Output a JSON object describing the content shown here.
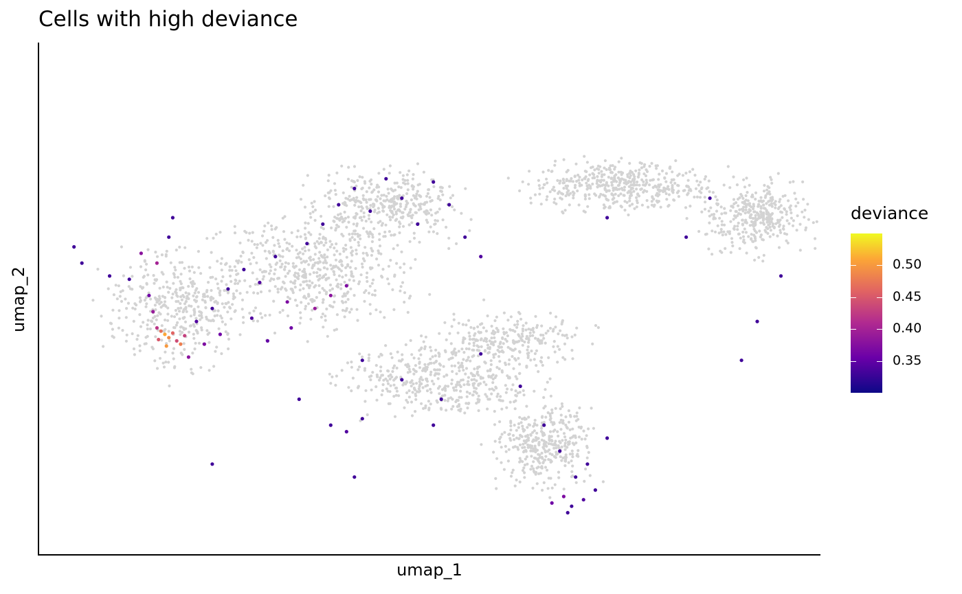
{
  "chart_data": {
    "type": "scatter",
    "title": "Cells with high deviance",
    "xlabel": "umap_1",
    "ylabel": "umap_2",
    "grid": false,
    "legend": {
      "title": "deviance",
      "position": "right",
      "colormap": "plasma",
      "range": [
        0.3,
        0.55
      ],
      "ticks": [
        0.35,
        0.4,
        0.45,
        0.5
      ],
      "tick_labels": [
        "0.35",
        "0.40",
        "0.45",
        "0.50"
      ]
    },
    "background_color": "#d3d3d3",
    "series": [
      {
        "group": "high_deviance_cells",
        "points": [
          [
            -2.15,
            1.55,
            0.33
          ],
          [
            -2.05,
            1.3,
            0.33
          ],
          [
            -1.7,
            1.1,
            0.33
          ],
          [
            -1.45,
            1.05,
            0.33
          ],
          [
            -1.3,
            1.45,
            0.38
          ],
          [
            -1.1,
            1.3,
            0.4
          ],
          [
            -0.95,
            1.7,
            0.33
          ],
          [
            -0.9,
            2.0,
            0.33
          ],
          [
            -1.2,
            0.8,
            0.36
          ],
          [
            -1.15,
            0.55,
            0.39
          ],
          [
            -1.1,
            0.3,
            0.42
          ],
          [
            -1.05,
            0.25,
            0.47
          ],
          [
            -1.0,
            0.2,
            0.51
          ],
          [
            -0.95,
            0.15,
            0.49
          ],
          [
            -0.9,
            0.22,
            0.46
          ],
          [
            -0.85,
            0.1,
            0.44
          ],
          [
            -0.8,
            0.05,
            0.48
          ],
          [
            -0.75,
            0.18,
            0.43
          ],
          [
            -1.08,
            0.12,
            0.45
          ],
          [
            -0.98,
            0.02,
            0.5
          ],
          [
            -0.7,
            -0.15,
            0.38
          ],
          [
            -0.6,
            0.4,
            0.34
          ],
          [
            -0.4,
            0.6,
            0.33
          ],
          [
            -0.2,
            0.9,
            0.33
          ],
          [
            0.0,
            1.2,
            0.33
          ],
          [
            0.2,
            1.0,
            0.34
          ],
          [
            0.4,
            1.4,
            0.33
          ],
          [
            0.55,
            0.7,
            0.37
          ],
          [
            0.8,
            1.6,
            0.33
          ],
          [
            1.0,
            1.9,
            0.33
          ],
          [
            1.2,
            2.2,
            0.33
          ],
          [
            1.4,
            2.45,
            0.33
          ],
          [
            1.6,
            2.1,
            0.33
          ],
          [
            1.8,
            2.6,
            0.33
          ],
          [
            2.0,
            2.3,
            0.33
          ],
          [
            2.2,
            1.9,
            0.33
          ],
          [
            2.4,
            2.55,
            0.33
          ],
          [
            2.6,
            2.2,
            0.33
          ],
          [
            2.8,
            1.7,
            0.33
          ],
          [
            3.0,
            1.4,
            0.34
          ],
          [
            1.1,
            0.8,
            0.38
          ],
          [
            1.3,
            0.95,
            0.37
          ],
          [
            0.9,
            0.6,
            0.39
          ],
          [
            0.6,
            0.3,
            0.36
          ],
          [
            0.3,
            0.1,
            0.35
          ],
          [
            0.1,
            0.45,
            0.34
          ],
          [
            -0.3,
            0.2,
            0.36
          ],
          [
            -0.5,
            0.05,
            0.37
          ],
          [
            1.5,
            -0.2,
            0.33
          ],
          [
            2.0,
            -0.5,
            0.33
          ],
          [
            2.5,
            -0.8,
            0.33
          ],
          [
            3.0,
            -0.1,
            0.33
          ],
          [
            3.5,
            -0.6,
            0.33
          ],
          [
            3.8,
            -1.2,
            0.33
          ],
          [
            4.0,
            -1.6,
            0.33
          ],
          [
            4.2,
            -2.0,
            0.33
          ],
          [
            4.05,
            -2.3,
            0.37
          ],
          [
            4.15,
            -2.45,
            0.33
          ],
          [
            4.3,
            -2.35,
            0.34
          ],
          [
            4.1,
            -2.55,
            0.33
          ],
          [
            3.9,
            -2.4,
            0.36
          ],
          [
            4.45,
            -2.2,
            0.33
          ],
          [
            4.35,
            -1.8,
            0.33
          ],
          [
            4.6,
            -1.4,
            0.33
          ],
          [
            1.1,
            -1.2,
            0.33
          ],
          [
            1.3,
            -1.3,
            0.34
          ],
          [
            1.5,
            -1.1,
            0.33
          ],
          [
            0.7,
            -0.8,
            0.33
          ],
          [
            -0.4,
            -1.8,
            0.33
          ],
          [
            1.4,
            -2.0,
            0.33
          ],
          [
            2.4,
            -1.2,
            0.33
          ],
          [
            4.6,
            2.0,
            0.33
          ],
          [
            5.6,
            1.7,
            0.33
          ],
          [
            6.8,
            1.1,
            0.33
          ],
          [
            6.5,
            0.4,
            0.33
          ],
          [
            6.3,
            -0.2,
            0.33
          ],
          [
            5.9,
            2.3,
            0.33
          ]
        ]
      }
    ]
  }
}
